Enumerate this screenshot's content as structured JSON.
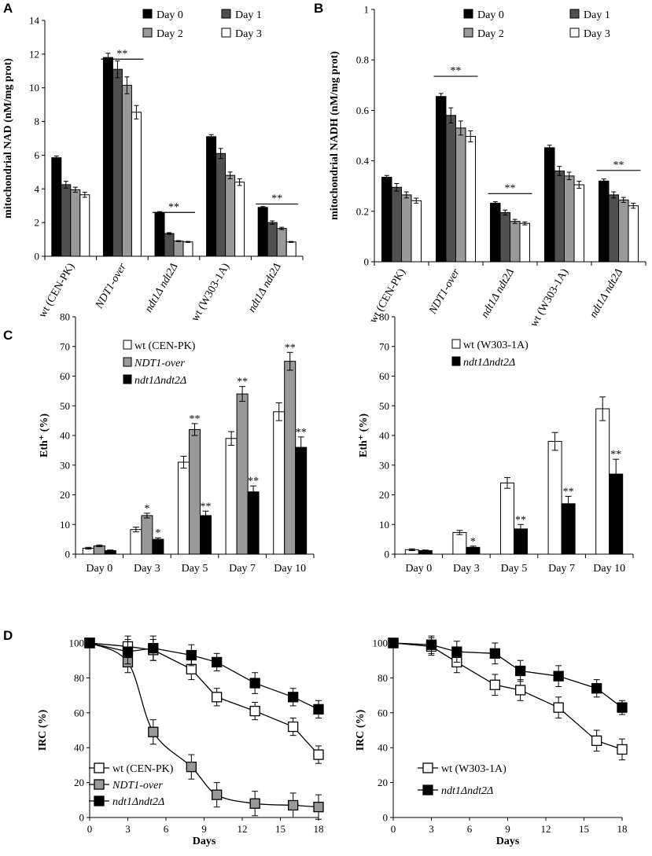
{
  "figure": {
    "panel_labels": [
      "A",
      "B",
      "C",
      "D"
    ]
  },
  "styles": {
    "day0": "#000000",
    "day1": "#505050",
    "day2": "#999999",
    "day3": "#ffffff",
    "wt": "#ffffff",
    "over": "#999999",
    "mut": "#000000",
    "stroke": "#000000"
  },
  "chart_data": [
    {
      "id": "A",
      "type": "bar",
      "ylabel": "mitochondrial NAD (nM/mg prot)",
      "ylim": [
        0,
        14
      ],
      "yticks": [
        0,
        2,
        4,
        6,
        8,
        10,
        12,
        14
      ],
      "categories": [
        "wt (CEN-PK)",
        "NDT1-over",
        "ndt1Δ ndt2Δ",
        "wt (W303-1A)",
        "ndt1Δ ndt2Δ"
      ],
      "category_italic": [
        false,
        true,
        true,
        false,
        true
      ],
      "series": [
        {
          "name": "Day 0",
          "style": "day0",
          "values": [
            5.85,
            11.8,
            2.6,
            7.1,
            2.9
          ],
          "errors": [
            0.1,
            0.25,
            0.05,
            0.12,
            0.05
          ]
        },
        {
          "name": "Day 1",
          "style": "day1",
          "values": [
            4.25,
            11.1,
            1.35,
            6.1,
            2.0
          ],
          "errors": [
            0.2,
            0.5,
            0.05,
            0.3,
            0.1
          ]
        },
        {
          "name": "Day 2",
          "style": "day2",
          "values": [
            3.95,
            10.15,
            0.9,
            4.8,
            1.65
          ],
          "errors": [
            0.15,
            0.5,
            0.03,
            0.2,
            0.07
          ]
        },
        {
          "name": "Day 3",
          "style": "day3",
          "values": [
            3.65,
            8.55,
            0.85,
            4.4,
            0.85
          ],
          "errors": [
            0.15,
            0.4,
            0.03,
            0.2,
            0.03
          ]
        }
      ],
      "significance": [
        {
          "category_index": 1,
          "label": "**",
          "y": 11.7
        },
        {
          "category_index": 2,
          "label": "**",
          "y": 2.6
        },
        {
          "category_index": 4,
          "label": "**",
          "y": 3.1
        }
      ]
    },
    {
      "id": "B",
      "type": "bar",
      "ylabel": "mitochondrial NADH (nM/mg prot)",
      "ylim": [
        0,
        1
      ],
      "yticks": [
        0,
        0.2,
        0.4,
        0.6,
        0.8,
        1
      ],
      "categories": [
        "wt (CEN-PK)",
        "NDT1-over",
        "ndt1Δ ndt2Δ",
        "wt (W303-1A)",
        "ndt1Δ ndt2Δ"
      ],
      "category_italic": [
        false,
        true,
        true,
        false,
        true
      ],
      "series": [
        {
          "name": "Day 0",
          "style": "day0",
          "values": [
            0.335,
            0.655,
            0.232,
            0.452,
            0.32
          ],
          "errors": [
            0.007,
            0.012,
            0.006,
            0.01,
            0.008
          ]
        },
        {
          "name": "Day 1",
          "style": "day1",
          "values": [
            0.295,
            0.58,
            0.195,
            0.36,
            0.265
          ],
          "errors": [
            0.015,
            0.03,
            0.01,
            0.018,
            0.012
          ]
        },
        {
          "name": "Day 2",
          "style": "day2",
          "values": [
            0.265,
            0.53,
            0.16,
            0.34,
            0.245
          ],
          "errors": [
            0.012,
            0.028,
            0.008,
            0.015,
            0.01
          ]
        },
        {
          "name": "Day 3",
          "style": "day3",
          "values": [
            0.242,
            0.497,
            0.152,
            0.305,
            0.222
          ],
          "errors": [
            0.01,
            0.022,
            0.006,
            0.014,
            0.01
          ]
        }
      ],
      "significance": [
        {
          "category_index": 1,
          "label": "**",
          "y": 0.735
        },
        {
          "category_index": 2,
          "label": "**",
          "y": 0.27
        },
        {
          "category_index": 4,
          "label": "**",
          "y": 0.362
        }
      ]
    },
    {
      "id": "C1",
      "type": "bar",
      "ylabel": "Eth⁺ (%)",
      "ylim": [
        0,
        80
      ],
      "yticks": [
        0,
        10,
        20,
        30,
        40,
        50,
        60,
        70,
        80
      ],
      "categories": [
        "Day 0",
        "Day 3",
        "Day 5",
        "Day 7",
        "Day 10"
      ],
      "series": [
        {
          "name": "wt (CEN-PK)",
          "style": "wt",
          "italic": false,
          "values": [
            2,
            8.3,
            31,
            39,
            48
          ],
          "errors": [
            0.3,
            0.8,
            2,
            2.3,
            3
          ],
          "stars": [
            "",
            "",
            "",
            "",
            ""
          ]
        },
        {
          "name": "NDT1-over",
          "style": "over",
          "italic": true,
          "values": [
            2.8,
            13,
            42,
            54,
            65
          ],
          "errors": [
            0.3,
            0.8,
            2,
            2.5,
            3
          ],
          "stars": [
            "",
            "*",
            "**",
            "**",
            "**"
          ]
        },
        {
          "name": "ndt1Δndt2Δ",
          "style": "mut",
          "italic": true,
          "values": [
            1.2,
            5,
            13,
            21,
            36
          ],
          "errors": [
            0.2,
            0.5,
            1.5,
            2,
            3.5
          ],
          "stars": [
            "",
            "*",
            "**",
            "**",
            "**"
          ]
        }
      ]
    },
    {
      "id": "C2",
      "type": "bar",
      "ylabel": "Eth⁺ (%)",
      "ylim": [
        0,
        80
      ],
      "yticks": [
        0,
        10,
        20,
        30,
        40,
        50,
        60,
        70,
        80
      ],
      "categories": [
        "Day 0",
        "Day 3",
        "Day 5",
        "Day 7",
        "Day 10"
      ],
      "series": [
        {
          "name": "wt (W303-1A)",
          "style": "wt",
          "italic": false,
          "values": [
            1.5,
            7.3,
            24,
            38,
            49
          ],
          "errors": [
            0.3,
            0.7,
            1.8,
            3,
            4
          ],
          "stars": [
            "",
            "",
            "",
            "",
            ""
          ]
        },
        {
          "name": "ndt1Δndt2Δ",
          "style": "mut",
          "italic": true,
          "values": [
            1.2,
            2.3,
            8.5,
            17,
            27
          ],
          "errors": [
            0.2,
            0.4,
            1.5,
            2.5,
            5
          ],
          "stars": [
            "",
            "*",
            "**",
            "**",
            "**"
          ]
        }
      ]
    },
    {
      "id": "D1",
      "type": "line",
      "xlabel": "Days",
      "ylabel": "IRC (%)",
      "xlim": [
        0,
        18
      ],
      "ylim": [
        0,
        100
      ],
      "xticks": [
        0,
        3,
        6,
        9,
        12,
        15,
        18
      ],
      "yticks": [
        0,
        20,
        40,
        60,
        80,
        100
      ],
      "series": [
        {
          "name": "wt (CEN-PK)",
          "style": "wt",
          "italic": false,
          "smooth": false,
          "x": [
            0,
            3,
            5,
            8,
            10,
            13,
            16,
            18
          ],
          "y": [
            100,
            98,
            96,
            85,
            69,
            61,
            52,
            36
          ],
          "errors": [
            1,
            6,
            6,
            6,
            5,
            5,
            5,
            5
          ]
        },
        {
          "name": "NDT1-over",
          "style": "over",
          "italic": true,
          "smooth": true,
          "x": [
            0,
            3,
            5,
            8,
            10,
            13,
            16,
            18
          ],
          "y": [
            100,
            89,
            49,
            29,
            13,
            8,
            7,
            6
          ],
          "errors": [
            1,
            6,
            7,
            7,
            7,
            7,
            7,
            7
          ]
        },
        {
          "name": "ndt1Δndt2Δ",
          "style": "mut",
          "italic": true,
          "smooth": false,
          "x": [
            0,
            3,
            5,
            8,
            10,
            13,
            16,
            18
          ],
          "y": [
            100,
            95,
            97,
            93,
            89,
            77,
            69,
            62
          ],
          "errors": [
            1,
            7,
            7,
            6,
            5,
            6,
            5,
            5
          ]
        }
      ]
    },
    {
      "id": "D2",
      "type": "line",
      "xlabel": "Days",
      "ylabel": "IRC (%)",
      "xlim": [
        0,
        18
      ],
      "ylim": [
        0,
        100
      ],
      "xticks": [
        0,
        3,
        6,
        9,
        12,
        15,
        18
      ],
      "yticks": [
        0,
        20,
        40,
        60,
        80,
        100
      ],
      "series": [
        {
          "name": "wt (W303-1A)",
          "style": "wt",
          "italic": false,
          "smooth": false,
          "x": [
            0,
            3,
            5,
            8,
            10,
            13,
            16,
            18
          ],
          "y": [
            100,
            98,
            89,
            76,
            73,
            63,
            44,
            39
          ],
          "errors": [
            1,
            5,
            6,
            6,
            6,
            6,
            6,
            6
          ]
        },
        {
          "name": "ndt1Δndt2Δ",
          "style": "mut",
          "italic": true,
          "smooth": false,
          "x": [
            0,
            3,
            5,
            8,
            10,
            13,
            16,
            18
          ],
          "y": [
            100,
            99,
            95,
            94,
            84,
            81,
            74,
            63
          ],
          "errors": [
            1,
            5,
            6,
            6,
            6,
            6,
            5,
            4
          ]
        }
      ]
    }
  ]
}
